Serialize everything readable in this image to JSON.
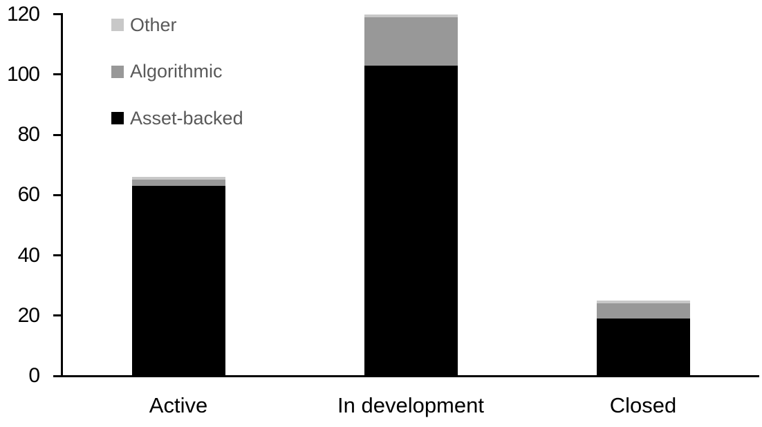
{
  "chart_data": {
    "type": "bar",
    "stacked": true,
    "title": "",
    "categories": [
      "Active",
      "In development",
      "Closed"
    ],
    "series": [
      {
        "name": "Asset-backed",
        "color": "#000000",
        "values": [
          63,
          103,
          19
        ]
      },
      {
        "name": "Algorithmic",
        "color": "#989898",
        "values": [
          2,
          16,
          5
        ]
      },
      {
        "name": "Other",
        "color": "#c8c8c8",
        "values": [
          1,
          1,
          1
        ]
      }
    ],
    "ylim": [
      0,
      120
    ],
    "yticks": [
      0,
      20,
      40,
      60,
      80,
      100,
      120
    ],
    "xlabel": "",
    "ylabel": "",
    "grid": false,
    "legend_position": "top-left",
    "legend_order": [
      "Other",
      "Algorithmic",
      "Asset-backed"
    ],
    "axis_color": "#000000",
    "tick_label_color": "#000000",
    "legend_text_color": "#595959",
    "background_color": "#ffffff"
  }
}
